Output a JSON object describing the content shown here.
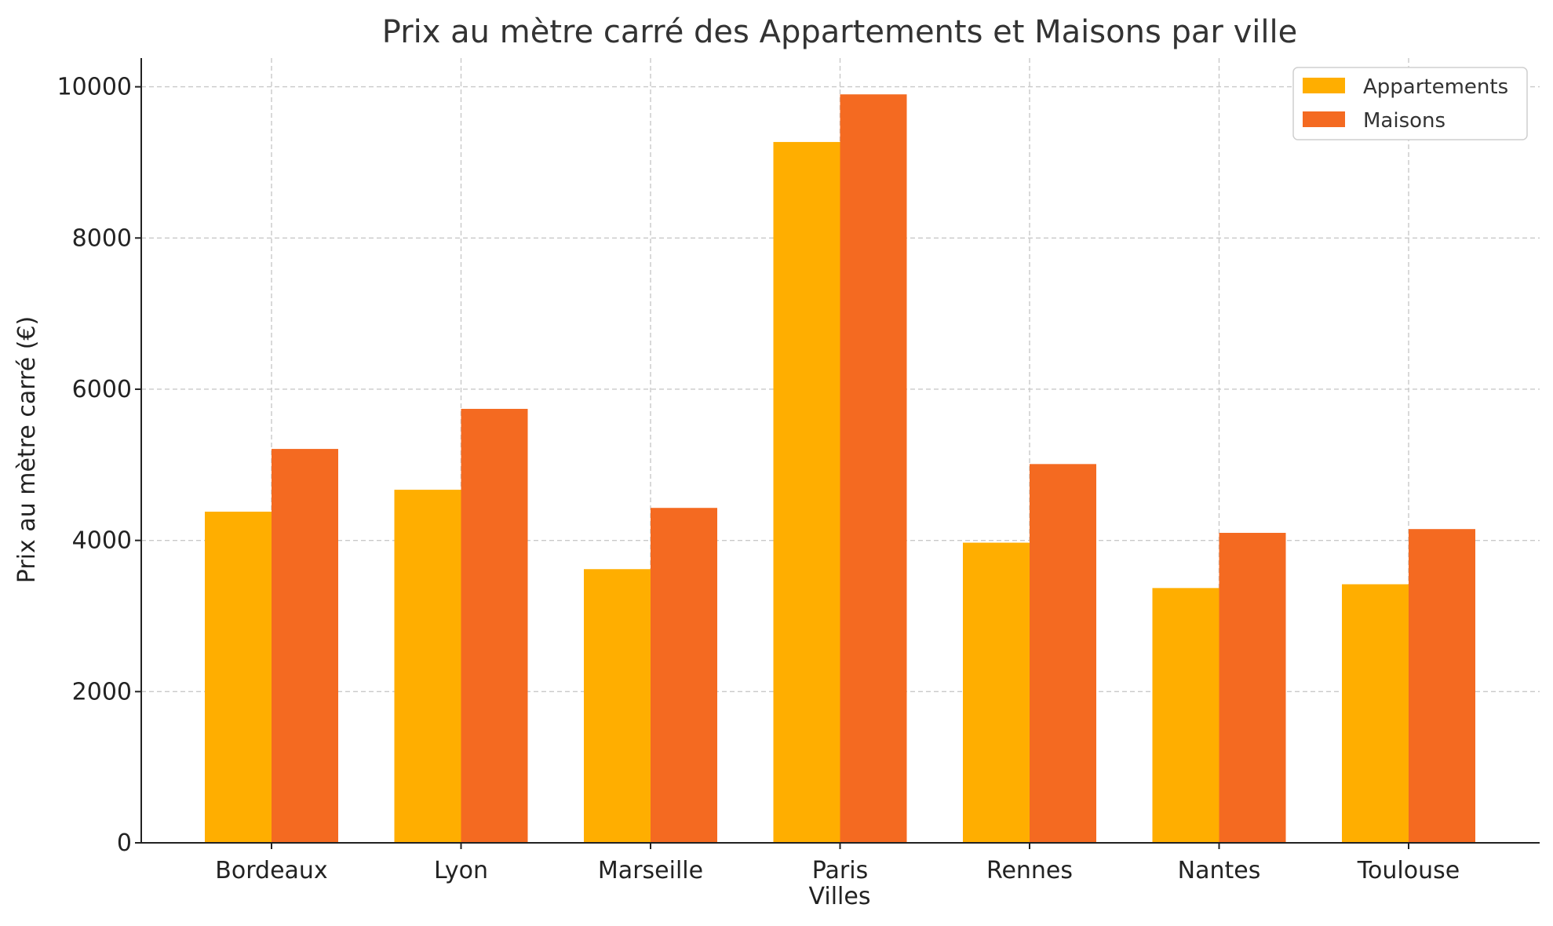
{
  "chart_data": {
    "type": "bar",
    "title": "Prix au mètre carré des Appartements et Maisons par ville",
    "xlabel": "Villes",
    "ylabel": "Prix au mètre carré (€)",
    "categories": [
      "Bordeaux",
      "Lyon",
      "Marseille",
      "Paris",
      "Rennes",
      "Nantes",
      "Toulouse"
    ],
    "series": [
      {
        "name": "Appartements",
        "color": "#FFAE00",
        "values": [
          4380,
          4670,
          3620,
          9270,
          3970,
          3370,
          3420
        ]
      },
      {
        "name": "Maisons",
        "color": "#F46A21",
        "values": [
          5210,
          5740,
          4430,
          9900,
          5010,
          4100,
          4150
        ]
      }
    ],
    "ylim": [
      0,
      10380
    ],
    "yticks": [
      0,
      2000,
      4000,
      6000,
      8000,
      10000
    ],
    "ytick_labels": [
      "0",
      "2000",
      "4000",
      "6000",
      "8000",
      "10000"
    ],
    "grid": true,
    "legend_position": "top-right"
  }
}
